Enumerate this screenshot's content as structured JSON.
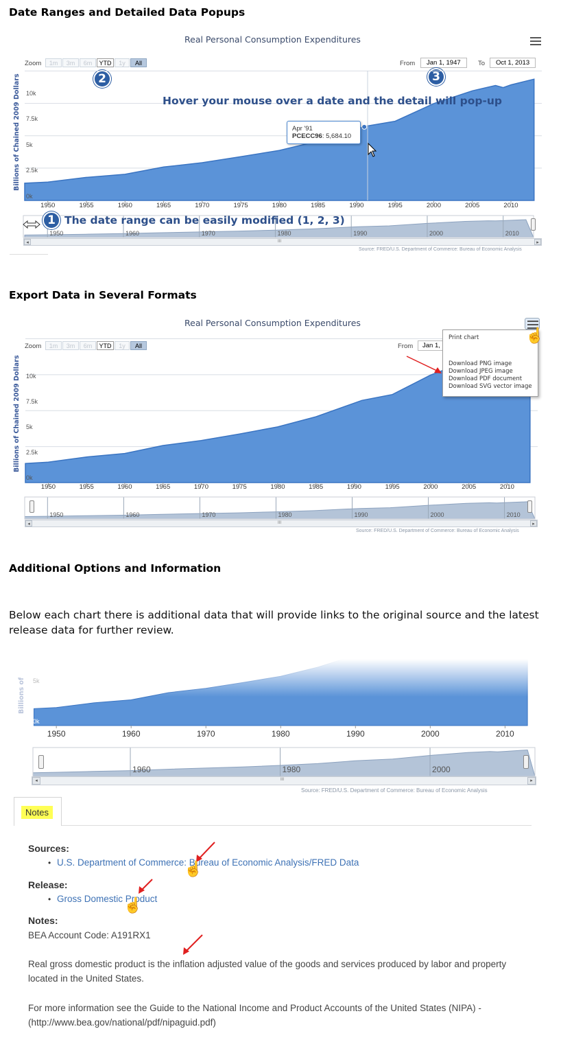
{
  "section1": {
    "heading": "Date Ranges and Detailed Data Popups",
    "chart": {
      "title": "Real Personal Consumption Expenditures",
      "zoom_label": "Zoom",
      "zoom_buttons": [
        "1m",
        "3m",
        "6m",
        "YTD",
        "1y",
        "All"
      ],
      "from_label": "From",
      "from_value": "Jan 1, 1947",
      "to_label": "To",
      "to_value": "Oct 1, 2013",
      "y_axis_title": "Billions of Chained 2009 Dollars",
      "y_ticks": [
        "10k",
        "7.5k",
        "5k",
        "2.5k",
        "0k"
      ],
      "x_ticks": [
        "1950",
        "1955",
        "1960",
        "1965",
        "1970",
        "1975",
        "1980",
        "1985",
        "1990",
        "1995",
        "2000",
        "2005",
        "2010"
      ],
      "navigator_ticks": [
        "1950",
        "1960",
        "1970",
        "1980",
        "1990",
        "2000",
        "2010"
      ],
      "scroll_grip": "III",
      "source": "Source: FRED/U.S. Department of Commerce: Bureau of Economic Analysis",
      "tooltip_date": "Apr '91",
      "tooltip_series": "PCECC96",
      "tooltip_value": ": 5,684.10",
      "badge1": "1",
      "badge2": "2",
      "badge3": "3",
      "hover_text": "Hover your mouse over a date and the detail will pop-up",
      "range_text": "The date range can be easily modified (1, 2, 3)"
    }
  },
  "section2": {
    "heading": "Export Data in Several Formats",
    "chart": {
      "title": "Real Personal Consumption Expenditures",
      "zoom_label": "Zoom",
      "zoom_buttons": [
        "1m",
        "3m",
        "6m",
        "YTD",
        "1y",
        "All"
      ],
      "from_label": "From",
      "from_value": "Jan 1,",
      "y_axis_title": "Billions of Chained 2009 Dollars",
      "y_ticks": [
        "10k",
        "7.5k",
        "5k",
        "2.5k",
        "0k"
      ],
      "x_ticks": [
        "1950",
        "1955",
        "1960",
        "1965",
        "1970",
        "1975",
        "1980",
        "1985",
        "1990",
        "1995",
        "2000",
        "2005",
        "2010"
      ],
      "navigator_ticks": [
        "1950",
        "1960",
        "1970",
        "1980",
        "1990",
        "2000",
        "2010"
      ],
      "scroll_grip": "III",
      "source": "Source: FRED/U.S. Department of Commerce: Bureau of Economic Analysis",
      "menu": {
        "print": "Print chart",
        "png": "Download PNG image",
        "jpeg": "Download JPEG image",
        "pdf": "Download PDF document",
        "svg": "Download SVG vector image"
      }
    }
  },
  "section3": {
    "heading": "Additional Options and Information",
    "paragraph": "Below each chart there is additional data that will provide links to the original source and the latest release data for further review.",
    "chart": {
      "y_axis_title": "Billions of",
      "y_ticks": [
        "5k",
        "0k"
      ],
      "x_ticks": [
        "1950",
        "1960",
        "1970",
        "1980",
        "1990",
        "2000",
        "2010"
      ],
      "navigator_ticks": [
        "1960",
        "1980",
        "2000"
      ],
      "scroll_grip": "III",
      "source": "Source: FRED/U.S. Department of Commerce: Bureau of Economic Analysis"
    },
    "notes": {
      "tab_label": "Notes",
      "sources_heading": "Sources:",
      "sources_link": "U.S. Department of Commerce: Bureau of Economic Analysis/FRED Data",
      "release_heading": "Release:",
      "release_link": "Gross Domestic Product",
      "notes_heading": "Notes:",
      "account_code": "BEA Account Code: A191RX1",
      "description": "Real gross domestic product is the inflation adjusted value of the goods and services produced by labor and property located in the United States.",
      "more_info": "For more information see the Guide to the National Income and Product Accounts of the United States (NIPA) - (http://www.bea.gov/national/pdf/nipaguid.pdf)"
    }
  },
  "colors": {
    "area_fill": "#5b93d8",
    "area_line": "#3a74c2",
    "navigator_fill": "#b4c4d8",
    "arrow_red": "#e02020",
    "badge_blue": "#2d5ea3"
  },
  "chart_data": [
    {
      "type": "area",
      "title": "Real Personal Consumption Expenditures",
      "ylabel": "Billions of Chained 2009 Dollars",
      "x": [
        1947,
        1950,
        1955,
        1960,
        1965,
        1970,
        1975,
        1980,
        1985,
        1990,
        1991,
        1995,
        2000,
        2005,
        2008,
        2009,
        2010,
        2013
      ],
      "values": [
        1300,
        1450,
        1750,
        2050,
        2550,
        2950,
        3350,
        3900,
        4550,
        5550,
        5684.1,
        6150,
        7450,
        8500,
        8850,
        8750,
        8900,
        9400
      ],
      "ylim": [
        0,
        10500
      ],
      "xlim": [
        1947,
        2014
      ],
      "grid": true,
      "legend": "none"
    }
  ]
}
